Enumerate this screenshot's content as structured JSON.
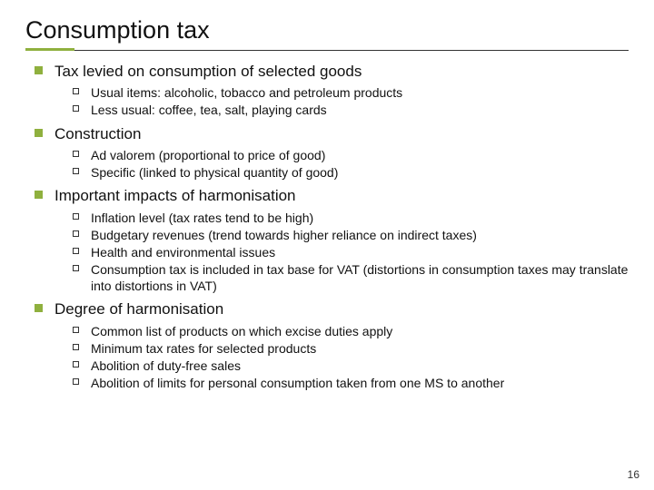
{
  "title": "Consumption tax",
  "accent_color": "#8fb03e",
  "page_number": "16",
  "sections": [
    {
      "heading": "Tax levied on consumption of selected goods",
      "items": [
        "Usual items: alcoholic, tobacco and petroleum products",
        "Less usual: coffee, tea, salt, playing cards"
      ]
    },
    {
      "heading": "Construction",
      "items": [
        "Ad valorem (proportional to price of good)",
        "Specific (linked to physical quantity of good)"
      ]
    },
    {
      "heading": "Important impacts of harmonisation",
      "items": [
        "Inflation level (tax rates tend to be high)",
        "Budgetary revenues (trend towards higher reliance on indirect taxes)",
        "Health and environmental issues",
        "Consumption tax is included in tax base for VAT (distortions in consumption taxes may translate into distortions in VAT)"
      ]
    },
    {
      "heading": "Degree of harmonisation",
      "items": [
        "Common list of products on which excise duties apply",
        "Minimum tax rates for selected products",
        "Abolition of duty-free sales",
        "Abolition of limits for personal consumption taken from one MS to another"
      ]
    }
  ]
}
